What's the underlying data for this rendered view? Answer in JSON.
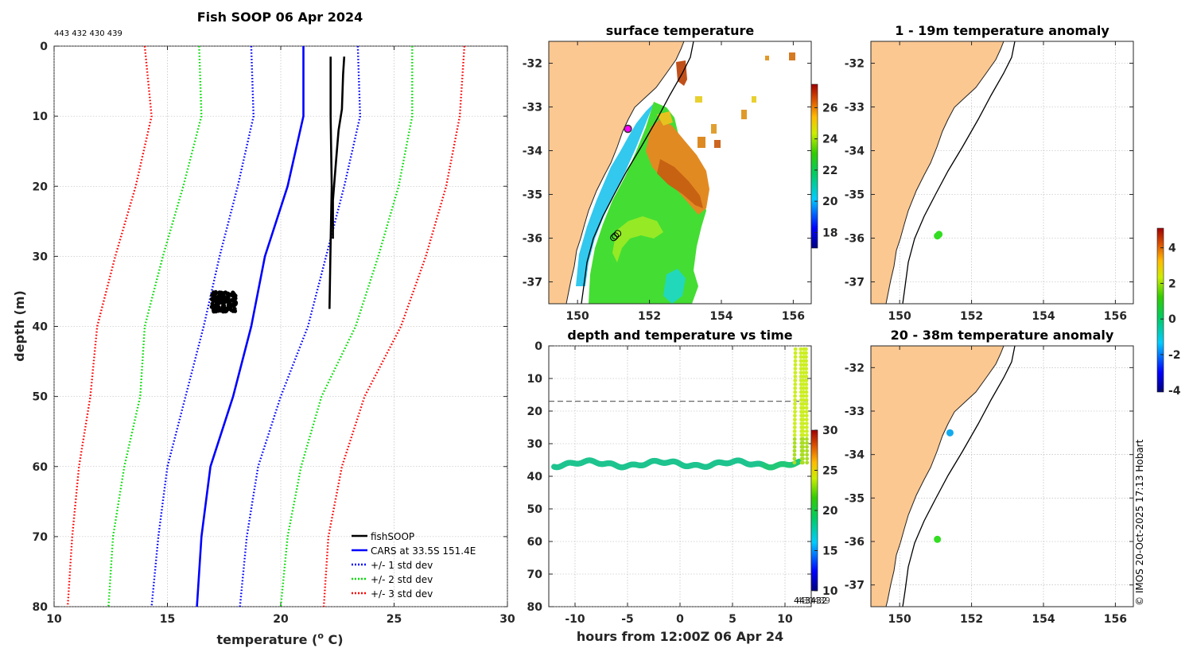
{
  "credit": "© IMOS 20-Oct-2025 17:13 Hobart",
  "chart_data": [
    {
      "id": "profile",
      "type": "line",
      "title": "Fish SOOP 06 Apr 2024",
      "subtitle": "443 432 430 439",
      "xlabel": "temperature (",
      "xlabel_sup": "o",
      "xlabel_end": " C)",
      "ylabel": "depth (m)",
      "xlim": [
        10,
        30
      ],
      "ylim": [
        0,
        80
      ],
      "xticks": [
        "10",
        "15",
        "20",
        "25",
        "30"
      ],
      "yticks": [
        "0",
        "10",
        "20",
        "30",
        "40",
        "50",
        "60",
        "70",
        "80"
      ],
      "legend": [
        "fishSOOP",
        "CARS at 33.5S 151.4E",
        "+/- 1 std dev",
        "+/- 2 std dev",
        "+/- 3 std dev"
      ],
      "series": [
        {
          "name": "CARS mean",
          "color": "#0000ff",
          "style": "solid",
          "points": [
            [
              21.0,
              0
            ],
            [
              21.0,
              10
            ],
            [
              20.3,
              20
            ],
            [
              19.3,
              30
            ],
            [
              18.7,
              40
            ],
            [
              17.9,
              50
            ],
            [
              16.9,
              60
            ],
            [
              16.5,
              70
            ],
            [
              16.3,
              80
            ]
          ]
        },
        {
          "name": "+1 std",
          "color": "#0000ff",
          "style": "dotted",
          "points": [
            [
              23.4,
              0
            ],
            [
              23.5,
              10
            ],
            [
              22.8,
              20
            ],
            [
              22.0,
              30
            ],
            [
              21.2,
              40
            ],
            [
              20.0,
              50
            ],
            [
              19.0,
              60
            ],
            [
              18.5,
              70
            ],
            [
              18.2,
              80
            ]
          ]
        },
        {
          "name": "-1 std",
          "color": "#0000ff",
          "style": "dotted",
          "points": [
            [
              18.7,
              0
            ],
            [
              18.8,
              10
            ],
            [
              18.1,
              20
            ],
            [
              17.3,
              30
            ],
            [
              16.6,
              40
            ],
            [
              15.8,
              50
            ],
            [
              15.0,
              60
            ],
            [
              14.6,
              70
            ],
            [
              14.3,
              80
            ]
          ]
        },
        {
          "name": "+2 std",
          "color": "#00dd00",
          "style": "dotted",
          "points": [
            [
              25.8,
              0
            ],
            [
              25.8,
              10
            ],
            [
              25.2,
              20
            ],
            [
              24.3,
              30
            ],
            [
              23.3,
              40
            ],
            [
              21.8,
              50
            ],
            [
              20.9,
              60
            ],
            [
              20.3,
              70
            ],
            [
              20.0,
              80
            ]
          ]
        },
        {
          "name": "-2 std",
          "color": "#00dd00",
          "style": "dotted",
          "points": [
            [
              16.4,
              0
            ],
            [
              16.5,
              10
            ],
            [
              15.7,
              20
            ],
            [
              14.8,
              30
            ],
            [
              14.0,
              40
            ],
            [
              13.8,
              50
            ],
            [
              13.1,
              60
            ],
            [
              12.6,
              70
            ],
            [
              12.4,
              80
            ]
          ]
        },
        {
          "name": "+3 std",
          "color": "#ff0000",
          "style": "dotted",
          "points": [
            [
              28.1,
              0
            ],
            [
              27.9,
              10
            ],
            [
              27.3,
              20
            ],
            [
              26.4,
              30
            ],
            [
              25.3,
              40
            ],
            [
              23.7,
              50
            ],
            [
              22.7,
              60
            ],
            [
              22.1,
              70
            ],
            [
              21.9,
              80
            ]
          ]
        },
        {
          "name": "-3 std",
          "color": "#ff0000",
          "style": "dotted",
          "points": [
            [
              14.0,
              0
            ],
            [
              14.3,
              10
            ],
            [
              13.6,
              20
            ],
            [
              12.7,
              30
            ],
            [
              11.9,
              40
            ],
            [
              11.6,
              50
            ],
            [
              11.1,
              60
            ],
            [
              10.8,
              70
            ],
            [
              10.6,
              80
            ]
          ]
        },
        {
          "name": "fishSOOP down",
          "color": "#000000",
          "style": "solid",
          "points": [
            [
              22.2,
              1.5
            ],
            [
              22.2,
              10
            ],
            [
              22.25,
              20
            ],
            [
              22.2,
              28
            ],
            [
              22.15,
              37.5
            ]
          ]
        },
        {
          "name": "fishSOOP up",
          "color": "#000000",
          "style": "solid",
          "points": [
            [
              22.3,
              27.5
            ],
            [
              22.3,
              22
            ],
            [
              22.45,
              16
            ],
            [
              22.55,
              12
            ],
            [
              22.7,
              9
            ],
            [
              22.75,
              4
            ],
            [
              22.8,
              1.5
            ]
          ]
        }
      ],
      "cluster": {
        "center": [
          17.5,
          36.5
        ],
        "spread_temp": 0.55,
        "spread_depth": 1.4,
        "color": "#000000"
      }
    },
    {
      "id": "surface",
      "type": "heatmap",
      "title": "surface temperature",
      "xlim": [
        149.2,
        156.5
      ],
      "ylim": [
        -37.5,
        -31.5
      ],
      "xticks": [
        "150",
        "152",
        "154",
        "156"
      ],
      "yticks": [
        "-32",
        "-33",
        "-34",
        "-35",
        "-36",
        "-37"
      ],
      "colorbar_ticks": [
        "18",
        "20",
        "22",
        "24",
        "26"
      ],
      "colorbar_range": [
        17,
        27.5
      ],
      "marker": {
        "lon": 151.4,
        "lat": -33.5,
        "color": "#ff00ff"
      },
      "circle_marker": {
        "lon": 151.05,
        "lat": -35.95
      }
    },
    {
      "id": "timeseries",
      "type": "scatter",
      "title": "depth and temperature vs time",
      "xlabel": "hours from 12:00Z 06 Apr 24",
      "xlim": [
        -12.5,
        12.5
      ],
      "ylim": [
        0,
        80
      ],
      "xticks": [
        "-10",
        "-5",
        "0",
        "5",
        "10"
      ],
      "yticks": [
        "0",
        "10",
        "20",
        "30",
        "40",
        "50",
        "60",
        "70",
        "80"
      ],
      "reference_depth": 17,
      "colorbar_ticks": [
        "10",
        "15",
        "20",
        "25",
        "30"
      ],
      "colorbar_range": [
        10,
        30
      ],
      "overlap_label": "443432",
      "overlap_label_2": "430439",
      "bottom_depth": 36.5,
      "bottom_temp": 17.5,
      "surface_temp": 22.5
    },
    {
      "id": "anom_upper",
      "type": "scatter",
      "title": "1 - 19m temperature anomaly",
      "xlim": [
        149.2,
        156.5
      ],
      "ylim": [
        -37.5,
        -31.5
      ],
      "xticks": [
        "150",
        "152",
        "154",
        "156"
      ],
      "yticks": [
        "-32",
        "-33",
        "-34",
        "-35",
        "-36",
        "-37"
      ],
      "points": [
        {
          "lon": 151.05,
          "lat": -35.95,
          "anomaly": 0.2
        }
      ]
    },
    {
      "id": "anom_lower",
      "type": "scatter",
      "title": "20 - 38m temperature anomaly",
      "xlim": [
        149.2,
        156.5
      ],
      "ylim": [
        -37.5,
        -31.5
      ],
      "xticks": [
        "150",
        "152",
        "154",
        "156"
      ],
      "yticks": [
        "-32",
        "-33",
        "-34",
        "-35",
        "-36",
        "-37"
      ],
      "points": [
        {
          "lon": 151.05,
          "lat": -35.95,
          "anomaly": 0.2
        },
        {
          "lon": 151.4,
          "lat": -33.5,
          "anomaly": -1.6
        }
      ],
      "colorbar_ticks": [
        "-4",
        "-2",
        "0",
        "2",
        "4"
      ],
      "colorbar_range": [
        -4.1,
        5.1
      ]
    }
  ]
}
